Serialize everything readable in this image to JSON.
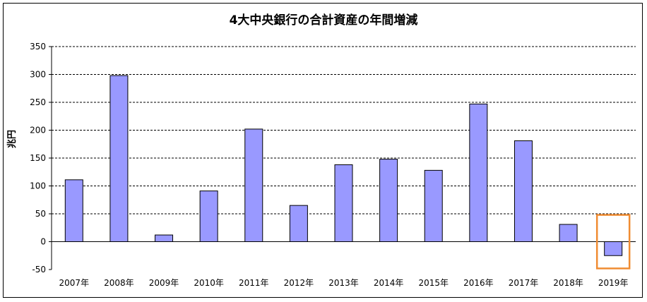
{
  "chart_data": {
    "type": "bar",
    "title": "4大中央銀行の合計資産の年間増減",
    "ylabel": "兆円",
    "xlabel": "",
    "categories": [
      "2007年",
      "2008年",
      "2009年",
      "2010年",
      "2011年",
      "2012年",
      "2013年",
      "2014年",
      "2015年",
      "2016年",
      "2017年",
      "2018年",
      "2019年"
    ],
    "values": [
      111,
      298,
      12,
      91,
      202,
      65,
      138,
      148,
      128,
      247,
      181,
      31,
      -25
    ],
    "ylim": [
      -50,
      350
    ],
    "yticks": [
      -50,
      0,
      50,
      100,
      150,
      200,
      250,
      300,
      350
    ],
    "grid": true,
    "bar_color": "#9999FF",
    "highlight_index": 12,
    "highlight_color": "#F08C32"
  }
}
